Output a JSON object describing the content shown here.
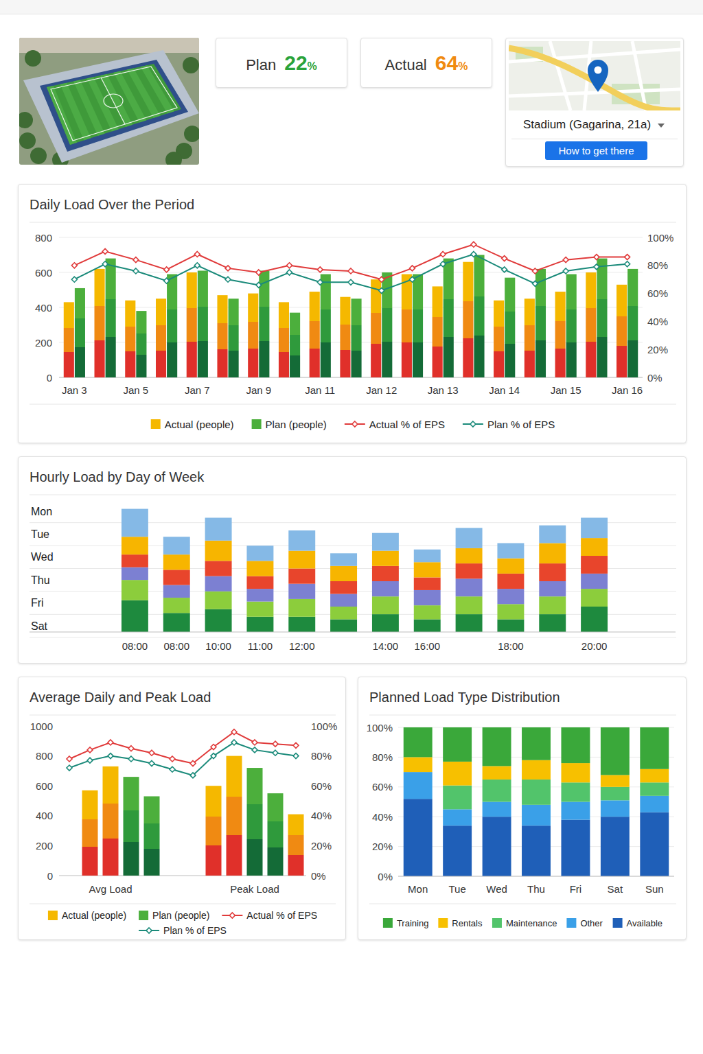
{
  "header": {
    "plan": {
      "label": "Plan",
      "value": 22,
      "unit": "%"
    },
    "actual": {
      "label": "Actual",
      "value": 64,
      "unit": "%"
    },
    "location": {
      "name": "Stadium (Gagarina, 21a)",
      "button": "How to get there"
    }
  },
  "chart_data": [
    {
      "type": "bar",
      "title": "Daily Load Over the Period",
      "categories": [
        "Jan 3",
        null,
        "Jan 5",
        null,
        "Jan 7",
        null,
        "Jan 9",
        null,
        "Jan 11",
        null,
        "Jan 12",
        null,
        "Jan 13",
        null,
        "Jan 14",
        null,
        "Jan 15",
        null,
        "Jan 16"
      ],
      "series": [
        {
          "name": "Actual (people)",
          "type": "bar",
          "color": "#f5b800",
          "values": [
            430,
            620,
            440,
            450,
            600,
            470,
            480,
            430,
            490,
            460,
            560,
            590,
            520,
            660,
            440,
            450,
            490,
            600,
            530
          ]
        },
        {
          "name": "Plan (people)",
          "type": "bar",
          "color": "#4caf3c",
          "values": [
            510,
            680,
            380,
            590,
            610,
            450,
            610,
            370,
            590,
            450,
            600,
            590,
            680,
            700,
            570,
            620,
            590,
            680,
            620
          ]
        },
        {
          "name": "Actual % of EPS",
          "type": "line",
          "axis": "y2",
          "color": "#e03a3a",
          "marker": "diamond",
          "values": [
            80,
            90,
            84,
            77,
            88,
            78,
            75,
            80,
            77,
            76,
            70,
            78,
            88,
            95,
            85,
            76,
            84,
            86,
            86
          ]
        },
        {
          "name": "Plan % of EPS",
          "type": "line",
          "axis": "y2",
          "color": "#1a8a7a",
          "marker": "diamond",
          "values": [
            70,
            81,
            76,
            69,
            80,
            70,
            66,
            75,
            68,
            68,
            62,
            70,
            81,
            88,
            77,
            67,
            76,
            79,
            81
          ]
        }
      ],
      "ylim": [
        0,
        800
      ],
      "yticks": [
        0,
        200,
        400,
        600,
        800
      ],
      "y2lim": [
        0,
        100
      ],
      "y2ticks": [
        {
          "value": 0,
          "label": "0%"
        },
        {
          "value": 20,
          "label": "20%"
        },
        {
          "value": 40,
          "label": "40%"
        },
        {
          "value": 60,
          "label": "60%"
        },
        {
          "value": 80,
          "label": "80%"
        },
        {
          "value": 100,
          "label": "100%"
        }
      ],
      "grid": true,
      "legend": "bottom"
    },
    {
      "type": "bar",
      "stacked": true,
      "title": "Hourly Load by Day of Week",
      "categories": [
        "08:00",
        "08:00",
        "10:00",
        "11:00",
        "12:00",
        null,
        "14:00",
        "16:00",
        null,
        "18:00",
        null,
        "20:00"
      ],
      "series": [
        {
          "name": "Mon",
          "color": "#85b9e6",
          "values": [
            22,
            14,
            18,
            12,
            16,
            10,
            14,
            10,
            16,
            12,
            14,
            16
          ]
        },
        {
          "name": "Tue",
          "color": "#f7b500",
          "values": [
            14,
            12,
            16,
            12,
            14,
            12,
            12,
            12,
            12,
            12,
            16,
            14
          ]
        },
        {
          "name": "Wed",
          "color": "#e8452c",
          "values": [
            10,
            12,
            12,
            10,
            12,
            10,
            12,
            10,
            12,
            12,
            14,
            14
          ]
        },
        {
          "name": "Thu",
          "color": "#7c80d2",
          "values": [
            10,
            10,
            12,
            10,
            12,
            10,
            12,
            12,
            14,
            12,
            12,
            12
          ]
        },
        {
          "name": "Fri",
          "color": "#8ccd3c",
          "values": [
            16,
            12,
            14,
            12,
            14,
            10,
            14,
            11,
            14,
            12,
            14,
            14
          ]
        },
        {
          "name": "Sat",
          "color": "#1e8a3e",
          "values": [
            25,
            15,
            18,
            12,
            12,
            10,
            14,
            10,
            14,
            10,
            14,
            20
          ]
        }
      ],
      "ylim": [
        0,
        100
      ],
      "tick_labels": "x",
      "grid": true
    },
    {
      "type": "bar",
      "title": "Average Daily and Peak Load",
      "categories": [
        null,
        null,
        "Avg Load",
        null,
        null,
        null,
        null,
        null,
        null,
        "Peak Load",
        null,
        null
      ],
      "series": [
        {
          "name": "Actual (people)",
          "type": "bar",
          "color": "#f5b800",
          "values": [
            null,
            570,
            730,
            null,
            null,
            null,
            null,
            600,
            800,
            null,
            null,
            410
          ]
        },
        {
          "name": "Plan (people)",
          "type": "bar",
          "color": "#4caf3c",
          "values": [
            null,
            null,
            null,
            660,
            530,
            null,
            null,
            null,
            null,
            720,
            550,
            null
          ]
        },
        {
          "name": "Actual % of EPS",
          "type": "line",
          "axis": "y2",
          "color": "#e03a3a",
          "marker": "diamond",
          "values": [
            78,
            84,
            89,
            85,
            82,
            78,
            75,
            86,
            96,
            89,
            88,
            87
          ]
        },
        {
          "name": "Plan % of EPS",
          "type": "line",
          "axis": "y2",
          "color": "#1a8a7a",
          "marker": "diamond",
          "values": [
            72,
            77,
            80,
            78,
            75,
            71,
            67,
            80,
            89,
            84,
            82,
            80
          ]
        }
      ],
      "ylim": [
        0,
        1000
      ],
      "yticks": [
        0,
        200,
        400,
        600,
        800,
        1000
      ],
      "y2lim": [
        0,
        100
      ],
      "y2ticks": [
        {
          "value": 0,
          "label": "0%"
        },
        {
          "value": 20,
          "label": "20%"
        },
        {
          "value": 40,
          "label": "40%"
        },
        {
          "value": 60,
          "label": "60%"
        },
        {
          "value": 80,
          "label": "80%"
        },
        {
          "value": 100,
          "label": "100%"
        }
      ],
      "grid": false,
      "legend": "bottom"
    },
    {
      "type": "bar",
      "stacked": true,
      "title": "Planned Load Type Distribution",
      "categories": [
        "Mon",
        "Tue",
        "Wed",
        "Thu",
        "Fri",
        "Sat",
        "Sun"
      ],
      "series": [
        {
          "name": "Training",
          "color": "#3aa83a",
          "values": [
            20,
            23,
            26,
            22,
            24,
            32,
            28
          ]
        },
        {
          "name": "Rentals",
          "color": "#f7c000",
          "values": [
            10,
            16,
            9,
            13,
            13,
            8,
            9
          ]
        },
        {
          "name": "Maintenance",
          "color": "#52c46b",
          "values": [
            0,
            16,
            15,
            17,
            13,
            9,
            9
          ]
        },
        {
          "name": "Other",
          "color": "#3aa0e8",
          "values": [
            18,
            11,
            10,
            14,
            12,
            11,
            11
          ]
        },
        {
          "name": "Available",
          "color": "#1f5fb8",
          "values": [
            52,
            34,
            40,
            34,
            38,
            40,
            43
          ]
        }
      ],
      "ylim": [
        0,
        100
      ],
      "yticks": [
        {
          "value": 0,
          "label": "0%"
        },
        {
          "value": 20,
          "label": "20%"
        },
        {
          "value": 40,
          "label": "40%"
        },
        {
          "value": 60,
          "label": "60%"
        },
        {
          "value": 80,
          "label": "80%"
        },
        {
          "value": 100,
          "label": "100%"
        }
      ],
      "grid": true,
      "legend": "bottom"
    }
  ]
}
